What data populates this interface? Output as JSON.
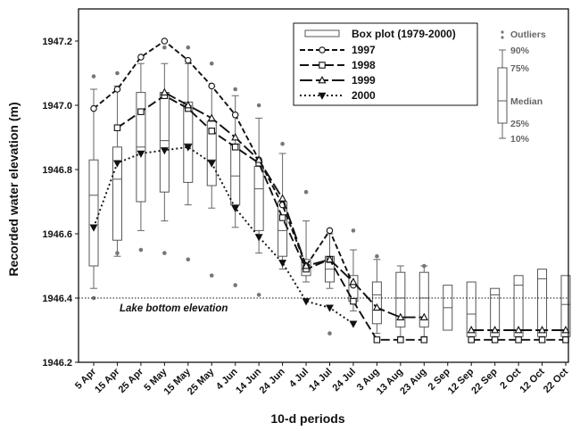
{
  "chart_data": {
    "type": "box-line",
    "xlabel": "10-d periods",
    "ylabel": "Recorded water elevation (m)",
    "ylim": [
      1946.2,
      1947.3
    ],
    "yticks": [
      1946.2,
      1946.4,
      1946.6,
      1946.8,
      1947.0,
      1947.2
    ],
    "categories": [
      "5 Apr",
      "15 Apr",
      "25 Apr",
      "5 May",
      "15 May",
      "25 May",
      "4 Jun",
      "14 Jun",
      "24 Jun",
      "4 Jul",
      "14 Jul",
      "24 Jul",
      "3 Aug",
      "13 Aug",
      "23 Aug",
      "2 Sep",
      "12 Sep",
      "22 Sep",
      "2 Oct",
      "12 Oct",
      "22 Oct"
    ],
    "boxplot": {
      "name": "Box plot (1979-2000)",
      "whisker_low": [
        1946.43,
        1946.53,
        1946.61,
        1946.64,
        1946.69,
        1946.68,
        1946.62,
        1946.54,
        1946.49,
        1946.45,
        1946.43,
        1946.36,
        1946.29,
        1946.28,
        1946.28,
        null,
        null,
        null,
        null,
        null,
        null
      ],
      "q1": [
        1946.5,
        1946.58,
        1946.7,
        1946.73,
        1946.76,
        1946.75,
        1946.69,
        1946.61,
        1946.53,
        1946.47,
        1946.45,
        1946.39,
        1946.32,
        1946.31,
        1946.31,
        1946.3,
        1946.28,
        1946.28,
        1946.28,
        1946.28,
        1946.28
      ],
      "median": [
        1946.72,
        1946.77,
        1946.87,
        1946.89,
        1946.88,
        1946.83,
        1946.78,
        1946.74,
        1946.61,
        1946.49,
        1946.49,
        1946.44,
        1946.41,
        1946.4,
        1946.4,
        1946.37,
        1946.35,
        1946.41,
        1946.44,
        1946.46,
        1946.38
      ],
      "q3": [
        1946.83,
        1946.87,
        1947.04,
        1947.04,
        1947.01,
        1946.95,
        1946.88,
        1946.81,
        1946.7,
        1946.52,
        1946.53,
        1946.47,
        1946.45,
        1946.48,
        1946.48,
        1946.44,
        1946.45,
        1946.43,
        1946.47,
        1946.49,
        1946.47
      ],
      "whisker_high": [
        1947.05,
        1947.06,
        1947.13,
        1947.13,
        1947.13,
        1947.06,
        1947.03,
        1946.96,
        1946.85,
        1946.64,
        1946.6,
        1946.55,
        1946.52,
        1946.5,
        1946.5,
        null,
        null,
        null,
        null,
        null,
        null
      ],
      "outliers": [
        {
          "category": "5 Apr",
          "values": [
            1947.09,
            1946.4
          ]
        },
        {
          "category": "15 Apr",
          "values": [
            1947.1,
            1946.54
          ]
        },
        {
          "category": "25 Apr",
          "values": [
            1947.15,
            1946.55
          ]
        },
        {
          "category": "5 May",
          "values": [
            1947.18,
            1946.54
          ]
        },
        {
          "category": "15 May",
          "values": [
            1947.18,
            1946.52
          ]
        },
        {
          "category": "25 May",
          "values": [
            1947.13,
            1946.47
          ]
        },
        {
          "category": "4 Jun",
          "values": [
            1947.05,
            1946.44
          ]
        },
        {
          "category": "14 Jun",
          "values": [
            1947.0,
            1946.41
          ]
        },
        {
          "category": "24 Jun",
          "values": [
            1946.88,
            1946.51
          ]
        },
        {
          "category": "4 Jul",
          "values": [
            1946.73
          ]
        },
        {
          "category": "14 Jul",
          "values": [
            1946.29
          ]
        },
        {
          "category": "24 Jul",
          "values": [
            1946.61
          ]
        },
        {
          "category": "3 Aug",
          "values": [
            1946.53
          ]
        },
        {
          "category": "23 Aug",
          "values": [
            1946.5
          ]
        }
      ]
    },
    "series": [
      {
        "name": "1997",
        "marker": "circle",
        "dash": "6,3",
        "values": [
          1946.99,
          1947.05,
          1947.15,
          1947.2,
          1947.14,
          1947.06,
          1946.97,
          1946.83,
          1946.69,
          1946.5,
          1946.61,
          1946.44,
          null,
          null,
          null,
          null,
          null,
          null,
          null,
          null,
          null
        ]
      },
      {
        "name": "1998",
        "marker": "square",
        "dash": "10,4",
        "values": [
          null,
          1946.93,
          1946.98,
          1947.03,
          1946.99,
          1946.92,
          1946.87,
          1946.82,
          1946.65,
          1946.49,
          1946.52,
          1946.39,
          1946.27,
          1946.27,
          1946.27,
          null,
          1946.27,
          1946.27,
          1946.27,
          1946.27,
          1946.27
        ]
      },
      {
        "name": "1999",
        "marker": "triangle",
        "dash": "14,4",
        "values": [
          null,
          null,
          null,
          1947.04,
          1947.0,
          1946.96,
          1946.9,
          1946.83,
          1946.71,
          1946.5,
          1946.52,
          1946.45,
          1946.37,
          1946.34,
          1946.34,
          null,
          1946.3,
          1946.3,
          1946.3,
          1946.3,
          1946.3
        ]
      },
      {
        "name": "2000",
        "marker": "triangle-down",
        "dash": "2,3",
        "values": [
          1946.62,
          1946.82,
          1946.85,
          1946.86,
          1946.87,
          1946.82,
          1946.68,
          1946.59,
          1946.51,
          1946.39,
          1946.37,
          1946.32,
          null,
          null,
          null,
          null,
          null,
          null,
          null,
          null,
          null
        ]
      }
    ],
    "reference_line": {
      "value": 1946.4,
      "label": "Lake bottom elevation"
    },
    "legend": {
      "placement": "top-right"
    },
    "box_key": {
      "outliers_label": "Outliers",
      "p90_label": "90%",
      "p75_label": "75%",
      "median_label": "Median",
      "p25_label": "25%",
      "p10_label": "10%"
    },
    "grid": false,
    "colors": {
      "axis": "#111111",
      "box": "#555555",
      "whisker": "#666666",
      "outlier": "#777777",
      "series": "#111111"
    }
  }
}
